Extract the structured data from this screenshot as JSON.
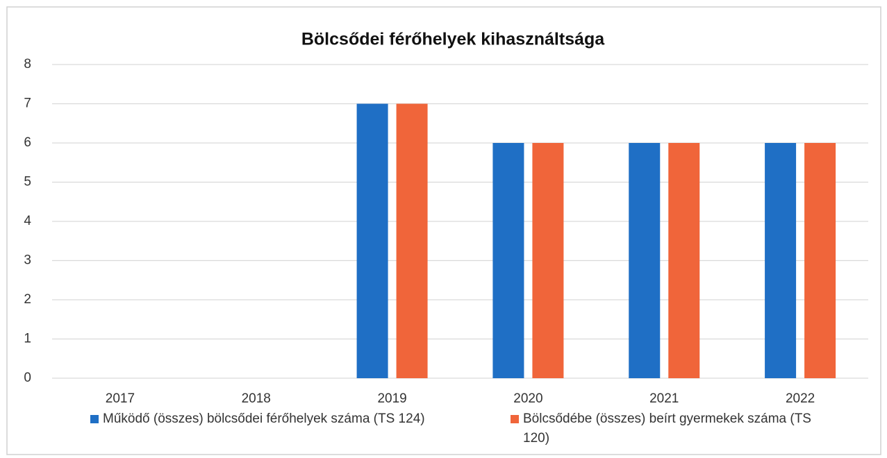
{
  "chart_data": {
    "type": "bar",
    "title": "Bölcsődei férőhelyek kihasználtsága",
    "categories": [
      "2017",
      "2018",
      "2019",
      "2020",
      "2021",
      "2022"
    ],
    "series": [
      {
        "name": "Működő (összes) bölcsődei férőhelyek száma (TS 124)",
        "color": "#1f6fc5",
        "values": [
          0,
          0,
          7,
          6,
          6,
          6
        ]
      },
      {
        "name": "Bölcsődébe (összes) beírt gyermekek száma (TS 120)",
        "color": "#f0653a",
        "values": [
          0,
          0,
          7,
          6,
          6,
          6
        ]
      }
    ],
    "ylim": [
      0,
      8
    ],
    "yticks": [
      0,
      1,
      2,
      3,
      4,
      5,
      6,
      7,
      8
    ],
    "grid": true,
    "legend": "bottom"
  }
}
